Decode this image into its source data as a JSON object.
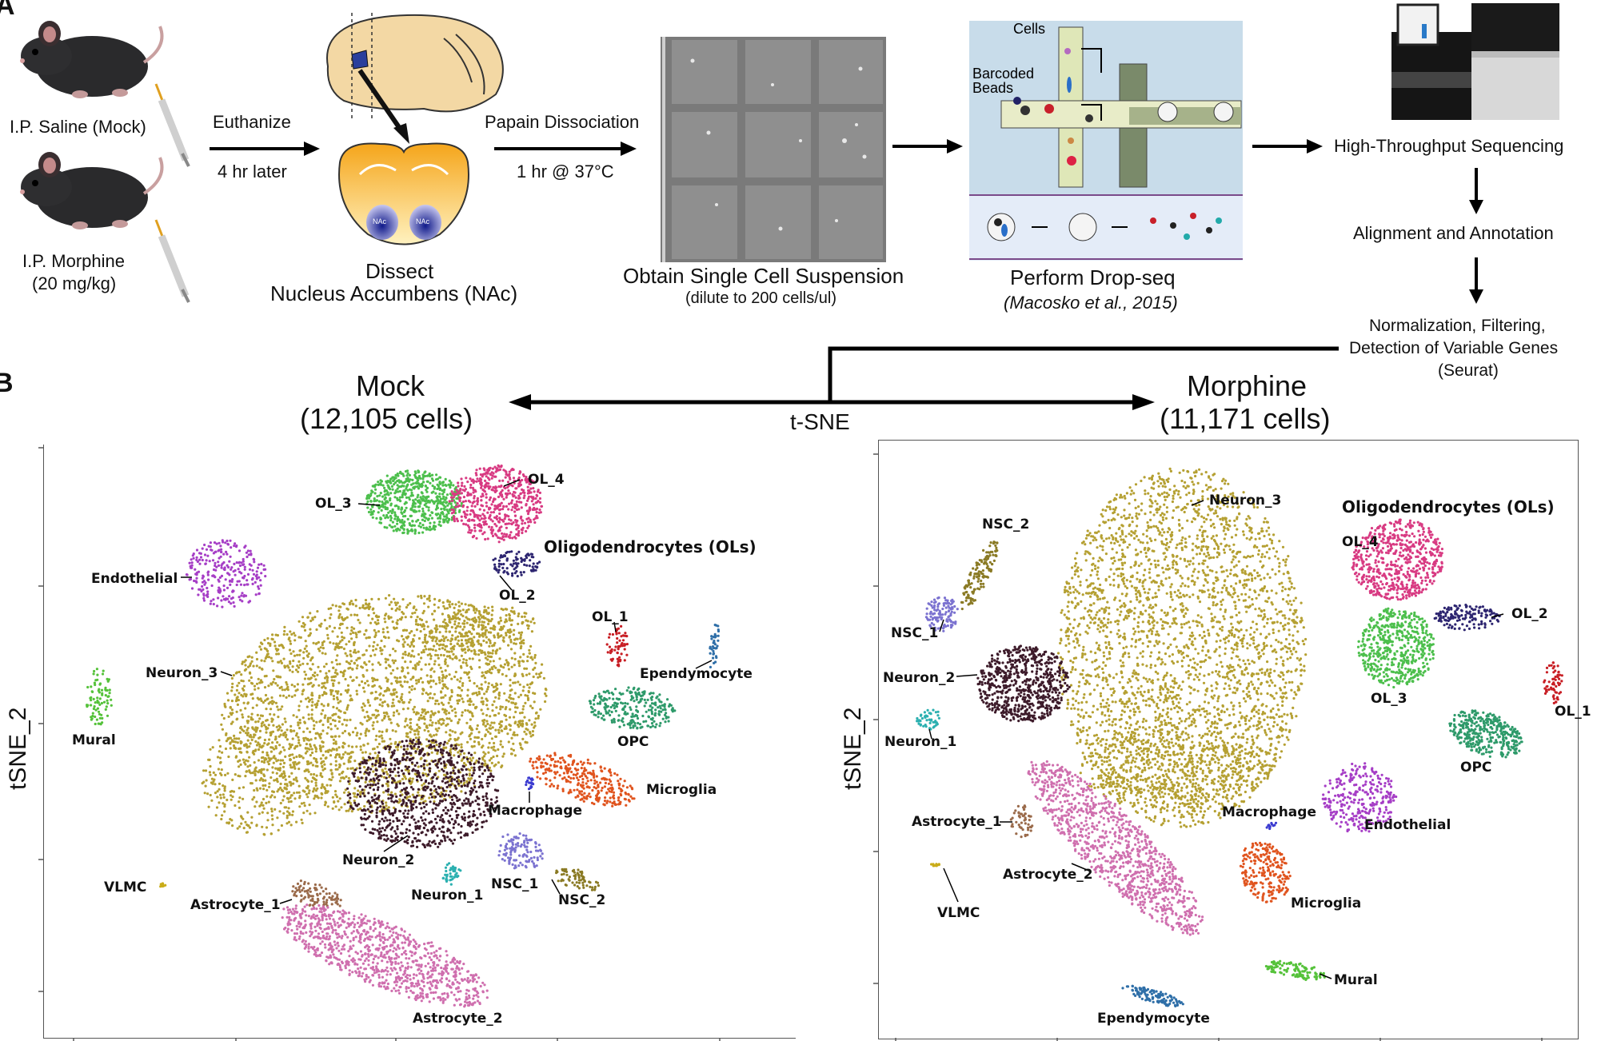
{
  "panels": {
    "a": "A",
    "b": "B"
  },
  "workflow": {
    "mock_label": "I.P. Saline (Mock)",
    "morphine_label": "I.P. Morphine",
    "morphine_dose": "(20 mg/kg)",
    "euthanize": "Euthanize",
    "euthanize_time": "4 hr later",
    "nac_left": "NAc",
    "nac_right": "NAc",
    "dissect_line1": "Dissect",
    "dissect_line2": "Nucleus Accumbens (NAc)",
    "papain": "Papain Dissociation",
    "papain_time": "1 hr @ 37°C",
    "suspension_line1": "Obtain Single Cell Suspension",
    "suspension_line2": "(dilute to 200 cells/ul)",
    "dropseq_cells": "Cells",
    "dropseq_beads1": "Barcoded",
    "dropseq_beads2": "Beads",
    "dropseq_line1": "Perform Drop-seq",
    "dropseq_line2": "(Macosko et al., 2015)",
    "sequencing": "High-Throughput Sequencing",
    "alignment": "Alignment and Annotation",
    "normalization1": "Normalization, Filtering,",
    "normalization2": "Detection of Variable Genes",
    "normalization3": "(Seurat)",
    "tsne": "t-SNE"
  },
  "mock": {
    "title": "Mock",
    "cells": "(12,105 cells)",
    "ylabel": "tSNE_2",
    "clusters": {
      "ol3": "OL_3",
      "ol4": "OL_4",
      "ols": "Oligodendrocytes (OLs)",
      "ol2": "OL_2",
      "endothelial": "Endothelial",
      "ol1": "OL_1",
      "ependymocyte": "Ependymocyte",
      "neuron3": "Neuron_3",
      "mural": "Mural",
      "opc": "OPC",
      "microglia": "Microglia",
      "macrophage": "Macrophage",
      "neuron2": "Neuron_2",
      "vlmc": "VLMC",
      "neuron1": "Neuron_1",
      "nsc1": "NSC_1",
      "nsc2": "NSC_2",
      "astrocyte1": "Astrocyte_1",
      "astrocyte2": "Astrocyte_2"
    }
  },
  "morphine": {
    "title": "Morphine",
    "cells": "(11,171 cells)",
    "ylabel": "tSNE_2",
    "clusters": {
      "nsc2": "NSC_2",
      "neuron3": "Neuron_3",
      "ols": "Oligodendrocytes (OLs)",
      "ol4": "OL_4",
      "nsc1": "NSC_1",
      "ol2": "OL_2",
      "neuron2": "Neuron_2",
      "ol3": "OL_3",
      "ol1": "OL_1",
      "neuron1": "Neuron_1",
      "opc": "OPC",
      "astrocyte1": "Astrocyte_1",
      "macrophage": "Macrophage",
      "endothelial": "Endothelial",
      "astrocyte2": "Astrocyte_2",
      "microglia": "Microglia",
      "vlmc": "VLMC",
      "mural": "Mural",
      "ependymocyte": "Ependymocyte"
    }
  },
  "colors": {
    "neuron3": "#b5a032",
    "neuron2": "#3d1b2a",
    "ol3": "#4cbf4c",
    "ol4": "#d83a82",
    "ol2": "#2d2570",
    "ol1": "#c81e24",
    "endothelial": "#a63ec6",
    "mural": "#55c23a",
    "opc": "#2e9a6a",
    "microglia": "#e0541e",
    "macrophage": "#3a3ad0",
    "ependymocyte": "#2f6fa8",
    "vlmc": "#c9ac18",
    "neuron1": "#2bb0b0",
    "nsc1": "#7b72d0",
    "nsc2": "#8a7a24",
    "astrocyte1": "#9a6a4a",
    "astrocyte2": "#cf6fae"
  }
}
